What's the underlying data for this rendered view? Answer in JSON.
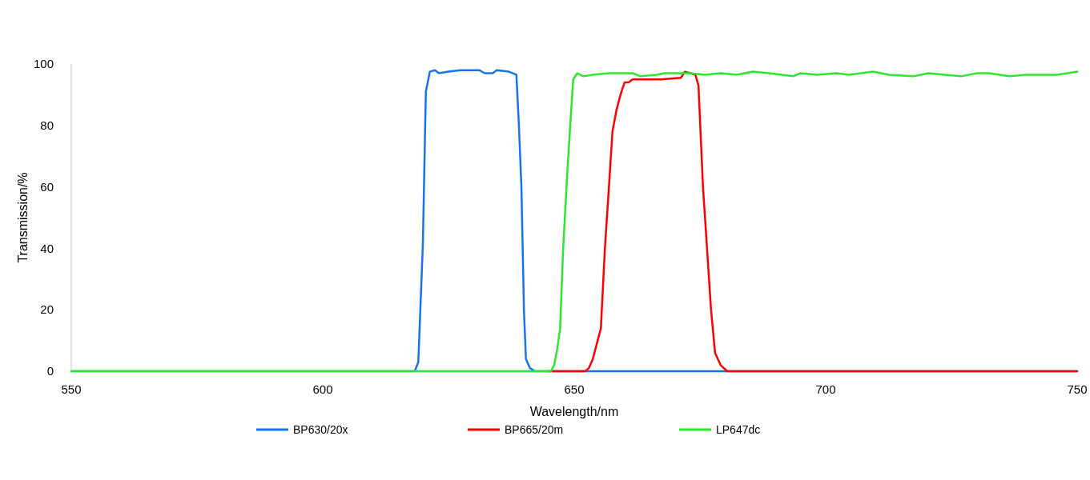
{
  "chart_data": {
    "type": "line",
    "xlabel": "Wavelength/nm",
    "ylabel": "Transmission/%",
    "xlim": [
      550,
      750
    ],
    "xticks": [
      550,
      600,
      650,
      700,
      750
    ],
    "ylim": [
      0,
      100
    ],
    "yticks": [
      0,
      20,
      40,
      60,
      80,
      100
    ],
    "grid": false,
    "legend": "bottom",
    "marker": "none",
    "line_style": "solid",
    "series": [
      {
        "name": "BP630/20x",
        "color": "#1a73e8",
        "x": [
          550,
          618.3,
          619.0,
          619.4,
          619.9,
          620.5,
          621.3,
          622.3,
          623.1,
          625.0,
          627.4,
          631.1,
          632.2,
          633.8,
          634.6,
          637.0,
          638.5,
          639.0,
          639.5,
          640.0,
          640.4,
          641.2,
          642.2,
          750
        ],
        "values": [
          0,
          0,
          3,
          20,
          41,
          91,
          97.5,
          98,
          97,
          97.5,
          98,
          98,
          97,
          97,
          98,
          97.5,
          96.5,
          80,
          60,
          20,
          4,
          1,
          0,
          0
        ]
      },
      {
        "name": "BP665/20m",
        "color": "#ff0000",
        "x": [
          644.9,
          652.2,
          652.9,
          653.7,
          655.3,
          656.1,
          656.9,
          657.6,
          658.4,
          659.2,
          660.0,
          660.8,
          661.6,
          664.0,
          667.2,
          671.2,
          672.0,
          673.1,
          674.1,
          674.7,
          675.6,
          676.4,
          677.2,
          678.0,
          679.1,
          680.4,
          750
        ],
        "values": [
          0,
          0,
          1,
          4,
          14,
          40,
          60,
          78,
          85,
          90,
          94,
          94,
          95,
          95,
          95,
          95.5,
          97.5,
          97,
          96.5,
          93,
          60,
          40,
          20,
          6,
          2,
          0,
          0
        ]
      },
      {
        "name": "LP647dc",
        "color": "#2ee62e",
        "x": [
          550,
          645.4,
          646.0,
          646.6,
          647.2,
          647.8,
          648.6,
          649.2,
          649.8,
          650.6,
          651.8,
          653.7,
          656.8,
          661.6,
          663.2,
          666.4,
          668.0,
          672.8,
          676.0,
          679.1,
          682.3,
          685.5,
          688.7,
          693.5,
          695.0,
          698.2,
          702.2,
          704.6,
          709.4,
          712.6,
          717.4,
          720.5,
          723.7,
          726.9,
          730.1,
          732.5,
          736.5,
          739.6,
          742.8,
          746.0,
          750
        ],
        "values": [
          0,
          0,
          2,
          7,
          14,
          40,
          64,
          80,
          95,
          97,
          96,
          96.5,
          97,
          97,
          96,
          96.5,
          97,
          97,
          96.5,
          97,
          96.5,
          97.5,
          97,
          96,
          97,
          96.5,
          97,
          96.5,
          97.5,
          96.5,
          96,
          97,
          96.5,
          96,
          97,
          97,
          96,
          96.5,
          96.5,
          96.5,
          97.5
        ]
      }
    ]
  }
}
